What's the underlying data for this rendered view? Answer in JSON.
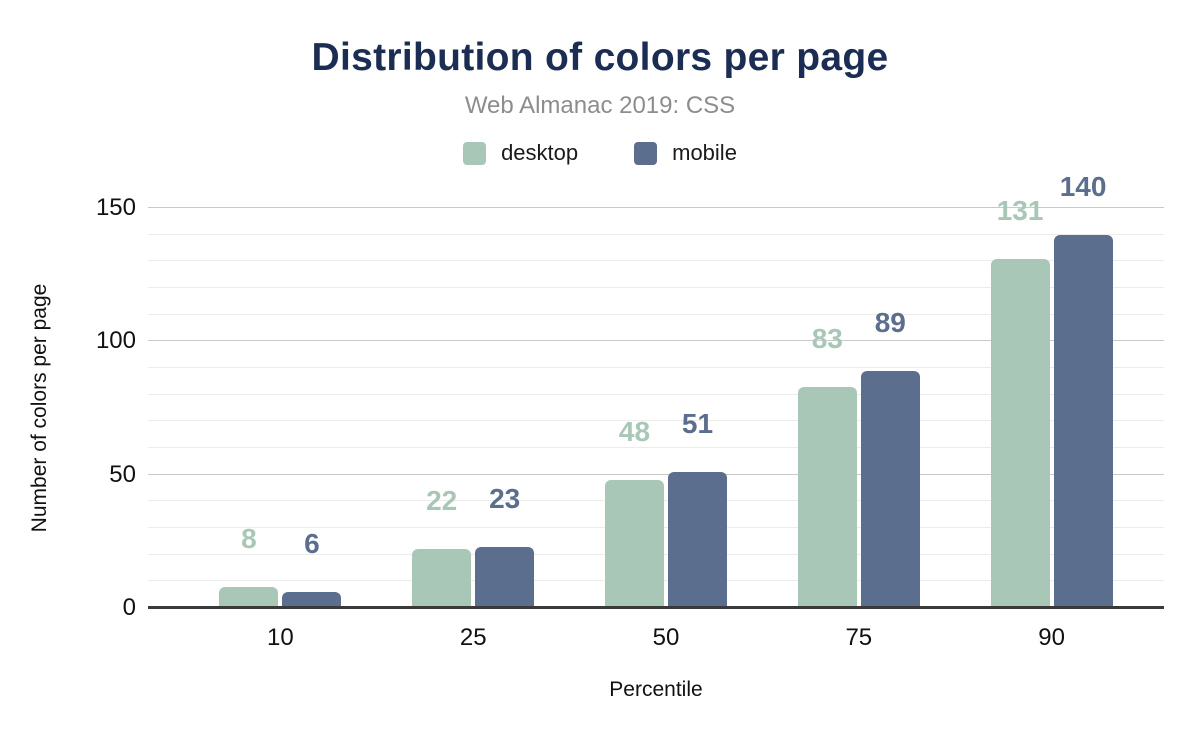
{
  "figure": {
    "title": "Distribution of colors per page",
    "subtitle": "Web Almanac 2019: CSS"
  },
  "colors": {
    "title": "#1b2d53",
    "subtitle": "#8d8d8d",
    "desktop": "#a9c7b6",
    "mobile": "#5c6e8d",
    "axis_line": "#3a3a3a",
    "gridline_major": "#c9c9c9",
    "gridline_minor": "#ececec",
    "tick_text": "#111111"
  },
  "chart_data": {
    "type": "bar",
    "title": "Distribution of colors per page",
    "subtitle": "Web Almanac 2019: CSS",
    "categories": [
      "10",
      "25",
      "50",
      "75",
      "90"
    ],
    "series": [
      {
        "name": "desktop",
        "color": "#a9c7b6",
        "values": [
          8,
          22,
          48,
          83,
          131
        ]
      },
      {
        "name": "mobile",
        "color": "#5c6e8d",
        "values": [
          6,
          23,
          51,
          89,
          140
        ]
      }
    ],
    "xlabel": "Percentile",
    "ylabel": "Number of colors per page",
    "ylim": [
      0,
      150
    ],
    "yticks": [
      0,
      50,
      100,
      150
    ],
    "minor_grid_step": 10,
    "grid": true,
    "legend_position": "top",
    "data_labels": true
  }
}
